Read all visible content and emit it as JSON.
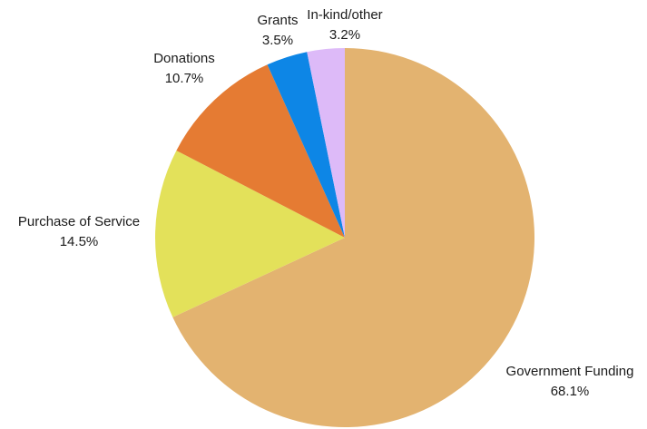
{
  "chart_data": {
    "type": "pie",
    "start_angle_deg": 0,
    "direction": "counterclockwise-from-top",
    "slices": [
      {
        "name": "Government Funding",
        "pct_label": "68.1%",
        "value": 68.1,
        "color": "#E3B370"
      },
      {
        "name": "Purchase of Service",
        "pct_label": "14.5%",
        "value": 14.5,
        "color": "#E3E15A"
      },
      {
        "name": "Donations",
        "pct_label": "10.7%",
        "value": 10.7,
        "color": "#E57B33"
      },
      {
        "name": "Grants",
        "pct_label": "3.5%",
        "value": 3.5,
        "color": "#0D86E6"
      },
      {
        "name": "In-kind/other",
        "pct_label": "3.2%",
        "value": 3.2,
        "color": "#DDBAF8"
      }
    ]
  }
}
